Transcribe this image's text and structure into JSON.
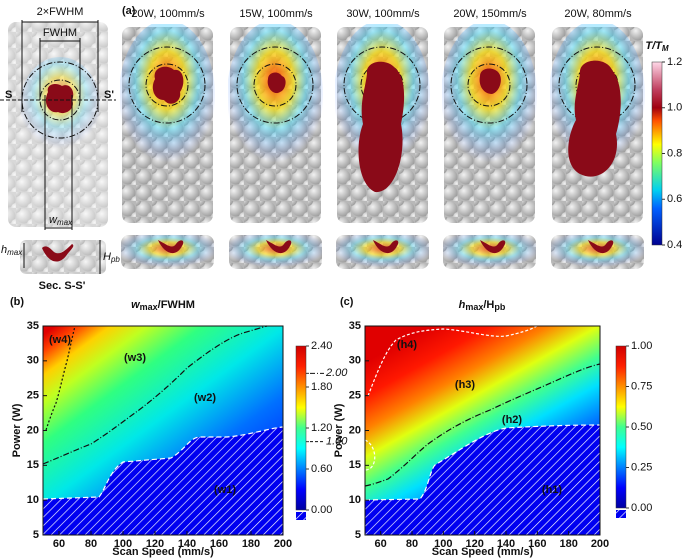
{
  "panel_a": {
    "label": "(a)",
    "schematic": {
      "width_outer": "2×FWHM",
      "width_inner": "FWHM",
      "section_left": "S",
      "section_right": "S'",
      "w": {
        "main": "w",
        "sub": "max"
      },
      "h": {
        "main": "h",
        "sub": "max"
      },
      "H": {
        "main": "H",
        "sub": "pb"
      },
      "section_caption": "Sec. S-S'"
    },
    "columns": [
      "20W, 100mm/s",
      "15W, 100mm/s",
      "30W, 100mm/s",
      "20W, 150mm/s",
      "20W, 80mm/s"
    ],
    "colorbar": {
      "title": {
        "main": "T/T",
        "sub": "M"
      },
      "lim": [
        0.4,
        1.2
      ],
      "ticks": [
        0.4,
        0.6,
        0.8,
        {
          "value": 1,
          "label": "1.0"
        },
        1.2
      ]
    }
  },
  "chart_data": [
    {
      "type": "contour",
      "panel": "(b)",
      "title": {
        "main": "w",
        "sub": "max",
        "rest": "/FWHM"
      },
      "x_label": "Scan Speed (mm/s)",
      "y_label": "Power (W)",
      "xlim": [
        50,
        200
      ],
      "xticks": [
        60,
        80,
        100,
        120,
        140,
        160,
        180,
        200
      ],
      "ylim": [
        5,
        35
      ],
      "yticks": [
        5,
        10,
        15,
        20,
        25,
        30,
        35
      ],
      "colorbar_lim": [
        0,
        2.4
      ],
      "colorbar_ticks": [
        {
          "value": 0,
          "label": "0.00"
        },
        {
          "value": 0.6,
          "label": "0.60"
        },
        {
          "value": 1,
          "label": "1.00"
        },
        {
          "value": 1.2,
          "label": "1.20"
        },
        {
          "value": 1.8,
          "label": "1.80"
        },
        {
          "value": 2,
          "label": "2.00"
        },
        {
          "value": 2.4,
          "label": "2.40"
        }
      ],
      "contour_levels": [
        1,
        2
      ],
      "regions": [
        "(w1)",
        "(w2)",
        "(w3)",
        "(w4)"
      ]
    },
    {
      "type": "contour",
      "panel": "(c)",
      "title": {
        "main": "h",
        "sub": "max",
        "rest": "/H",
        "sub2": "pb"
      },
      "x_label": "Scan Speed (mm/s)",
      "y_label": "Power (W)",
      "xlim": [
        50,
        200
      ],
      "xticks": [
        60,
        80,
        100,
        120,
        140,
        160,
        180,
        200
      ],
      "ylim": [
        5,
        35
      ],
      "yticks": [
        5,
        10,
        15,
        20,
        25,
        30,
        35
      ],
      "colorbar_lim": [
        0,
        1
      ],
      "colorbar_ticks": [
        {
          "value": 0,
          "label": "0.00"
        },
        {
          "value": 0.25,
          "label": "0.25"
        },
        {
          "value": 0.5,
          "label": "0.50"
        },
        {
          "value": 0.75,
          "label": "0.75"
        },
        {
          "value": 1,
          "label": "1.00"
        }
      ],
      "regions": [
        "(h1)",
        "(h2)",
        "(h3)",
        "(h4)"
      ]
    }
  ]
}
